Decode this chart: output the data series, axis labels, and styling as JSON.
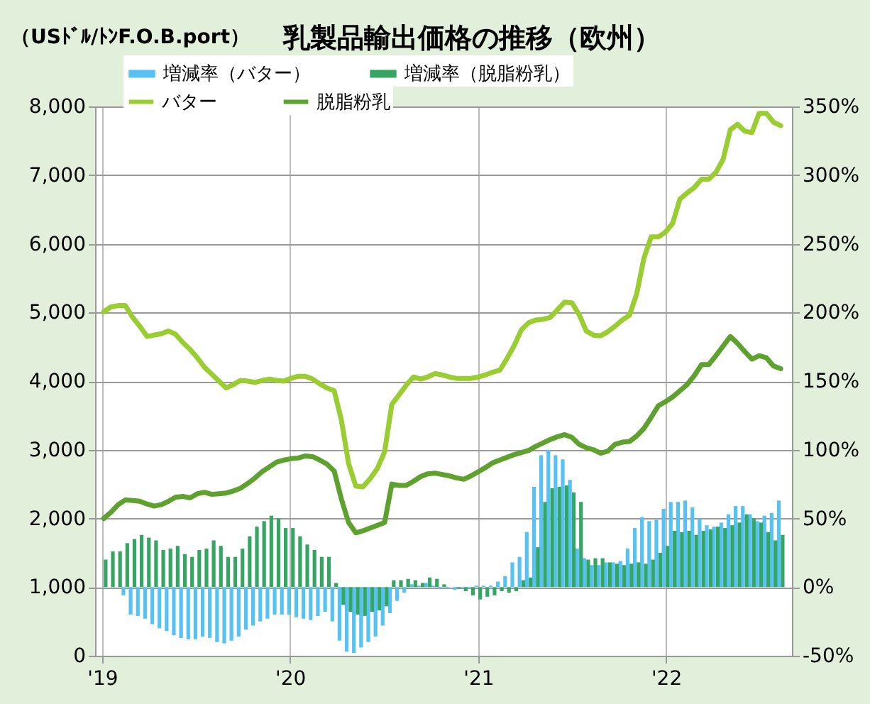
{
  "chart_data": {
    "type": "bar",
    "title": "乳製品輸出価格の推移（欧州）",
    "ylabel": "（USﾄﾞﾙ/ﾄﾝF.O.B.port）",
    "x": [
      "2019-01-04",
      "2019-01-18",
      "2019-02-01",
      "2019-02-15",
      "2019-03-01",
      "2019-03-15",
      "2019-03-29",
      "2019-04-12",
      "2019-04-26",
      "2019-05-10",
      "2019-05-24",
      "2019-06-07",
      "2019-06-21",
      "2019-07-05",
      "2019-07-19",
      "2019-08-02",
      "2019-08-16",
      "2019-08-30",
      "2019-09-13",
      "2019-09-27",
      "2019-10-11",
      "2019-10-25",
      "2019-11-08",
      "2019-11-22",
      "2019-12-06",
      "2019-12-20",
      "2020-01-03",
      "2020-01-17",
      "2020-01-31",
      "2020-02-14",
      "2020-02-28",
      "2020-03-13",
      "2020-03-27",
      "2020-04-10",
      "2020-04-24",
      "2020-05-08",
      "2020-05-22",
      "2020-06-05",
      "2020-06-19",
      "2020-07-03",
      "2020-07-17",
      "2020-07-31",
      "2020-08-14",
      "2020-08-28",
      "2020-09-11",
      "2020-09-25",
      "2020-10-09",
      "2020-10-23",
      "2020-11-06",
      "2020-11-20",
      "2020-12-04",
      "2020-12-18",
      "2021-01-01",
      "2021-01-15",
      "2021-01-29",
      "2021-02-12",
      "2021-02-26",
      "2021-03-12",
      "2021-03-26",
      "2021-04-09",
      "2021-04-23",
      "2021-05-07",
      "2021-05-21",
      "2021-06-04",
      "2021-06-18",
      "2021-07-02",
      "2021-07-16",
      "2021-07-30",
      "2021-08-13",
      "2021-08-27",
      "2021-09-10",
      "2021-09-24",
      "2021-10-08",
      "2021-10-22",
      "2021-11-05",
      "2021-11-19",
      "2021-12-03",
      "2021-12-17",
      "2021-12-31",
      "2022-01-14",
      "2022-01-28",
      "2022-02-11",
      "2022-02-25",
      "2022-03-11",
      "2022-03-25",
      "2022-04-08",
      "2022-04-22",
      "2022-05-06",
      "2022-05-20",
      "2022-06-03",
      "2022-06-17",
      "2022-07-01",
      "2022-07-15",
      "2022-07-29",
      "2022-08-12"
    ],
    "series": [
      {
        "name": "増減率（バター）",
        "axis": "y2",
        "color": "#55c1f5",
        "values": [
          null,
          null,
          null,
          -6,
          -20,
          -21,
          -23,
          -27,
          -30,
          -32,
          -35,
          -37,
          -38,
          -38,
          -36,
          -37,
          -40,
          -41,
          -39,
          -36,
          -31,
          -28,
          -25,
          -23,
          -20,
          -20,
          -20,
          -22,
          -23,
          -24,
          -21,
          -18,
          -25,
          -39,
          -47,
          -48,
          -44,
          -40,
          -36,
          -28,
          -19,
          -10,
          -4,
          2,
          1,
          3,
          1,
          -1,
          -1,
          -2,
          -1,
          -1,
          1,
          1,
          1,
          4,
          8,
          18,
          22,
          40,
          73,
          96,
          100,
          96,
          93,
          78,
          28,
          21,
          16,
          16,
          18,
          18,
          19,
          28,
          43,
          51,
          48,
          49,
          57,
          62,
          62,
          63,
          58,
          50,
          45,
          44,
          47,
          53,
          59,
          59,
          53,
          48,
          52,
          54,
          63
        ]
      },
      {
        "name": "増減率（脱脂粉乳）",
        "axis": "y2",
        "color": "#35a563",
        "values": [
          20,
          26,
          26,
          32,
          35,
          38,
          36,
          34,
          27,
          28,
          30,
          24,
          22,
          27,
          28,
          34,
          30,
          22,
          22,
          28,
          37,
          44,
          48,
          52,
          50,
          43,
          43,
          37,
          31,
          27,
          22,
          22,
          3,
          -13,
          -18,
          -20,
          -21,
          -18,
          -17,
          -14,
          5,
          5,
          6,
          5,
          3,
          7,
          6,
          2,
          0,
          -1,
          -3,
          -6,
          -9,
          -7,
          -6,
          -3,
          -4,
          -3,
          5,
          7,
          29,
          62,
          72,
          73,
          74,
          69,
          62,
          20,
          21,
          21,
          18,
          17,
          16,
          17,
          18,
          17,
          20,
          25,
          30,
          41,
          40,
          41,
          38,
          41,
          42,
          44,
          43,
          45,
          47,
          53,
          50,
          47,
          40,
          34,
          38
        ]
      },
      {
        "name": "バター",
        "type": "line",
        "color": "#9acd32",
        "values": [
          5010,
          5080,
          5100,
          5100,
          4930,
          4800,
          4650,
          4670,
          4690,
          4730,
          4680,
          4560,
          4460,
          4340,
          4200,
          4100,
          4000,
          3900,
          3950,
          4010,
          4000,
          3980,
          4010,
          4030,
          4010,
          4000,
          4040,
          4070,
          4070,
          4030,
          3960,
          3900,
          3860,
          3430,
          2800,
          2470,
          2460,
          2580,
          2730,
          2970,
          3660,
          3800,
          3940,
          4060,
          4030,
          4060,
          4110,
          4090,
          4060,
          4040,
          4040,
          4040,
          4060,
          4090,
          4130,
          4160,
          4330,
          4520,
          4750,
          4850,
          4890,
          4900,
          4930,
          5040,
          5150,
          5140,
          4970,
          4730,
          4670,
          4660,
          4720,
          4800,
          4890,
          4960,
          5270,
          5790,
          6100,
          6100,
          6170,
          6300,
          6650,
          6740,
          6820,
          6940,
          6940,
          7040,
          7230,
          7660,
          7740,
          7640,
          7620,
          7900,
          7900,
          7770,
          7720
        ]
      },
      {
        "name": "脱脂粉乳",
        "type": "line",
        "color": "#5fa12f",
        "values": [
          2000,
          2090,
          2200,
          2270,
          2260,
          2250,
          2210,
          2180,
          2200,
          2250,
          2310,
          2320,
          2300,
          2360,
          2380,
          2350,
          2360,
          2370,
          2400,
          2440,
          2510,
          2590,
          2680,
          2750,
          2820,
          2850,
          2870,
          2880,
          2910,
          2900,
          2850,
          2790,
          2690,
          2280,
          1940,
          1790,
          1820,
          1860,
          1900,
          1940,
          2500,
          2480,
          2480,
          2540,
          2610,
          2650,
          2660,
          2640,
          2620,
          2590,
          2570,
          2620,
          2680,
          2740,
          2810,
          2850,
          2890,
          2930,
          2960,
          2990,
          3050,
          3100,
          3150,
          3190,
          3220,
          3180,
          3080,
          3030,
          3000,
          2950,
          2980,
          3080,
          3110,
          3120,
          3200,
          3310,
          3470,
          3640,
          3700,
          3770,
          3860,
          3950,
          4080,
          4240,
          4240,
          4370,
          4510,
          4650,
          4550,
          4430,
          4320,
          4370,
          4340,
          4220,
          4180
        ]
      }
    ],
    "xlim": [
      "2019-01-01",
      "2022-08-20"
    ],
    "xticks": [
      {
        "value": "2019-01-01",
        "label": "'19"
      },
      {
        "value": "2020-01-01",
        "label": "'20"
      },
      {
        "value": "2021-01-01",
        "label": "'21"
      },
      {
        "value": "2022-01-01",
        "label": "'22"
      }
    ],
    "ylim": [
      0,
      8000
    ],
    "yticks": [
      0,
      {
        "value": 1000,
        "label": "1,000"
      },
      {
        "value": 2000,
        "label": "2,000"
      },
      {
        "value": 3000,
        "label": "3,000"
      },
      {
        "value": 4000,
        "label": "4,000"
      },
      {
        "value": 5000,
        "label": "5,000"
      },
      {
        "value": 6000,
        "label": "6,000"
      },
      {
        "value": 7000,
        "label": "7,000"
      },
      {
        "value": 8000,
        "label": "8,000"
      }
    ],
    "y2lim": [
      -50,
      350
    ],
    "y2ticks": [
      {
        "value": -50,
        "label": "-50%"
      },
      {
        "value": 0,
        "label": "0%"
      },
      {
        "value": 50,
        "label": "50%"
      },
      {
        "value": 100,
        "label": "100%"
      },
      {
        "value": 150,
        "label": "150%"
      },
      {
        "value": 200,
        "label": "200%"
      },
      {
        "value": 250,
        "label": "250%"
      },
      {
        "value": 300,
        "label": "300%"
      },
      {
        "value": 350,
        "label": "350%"
      }
    ],
    "grid": true,
    "legend": "top"
  }
}
